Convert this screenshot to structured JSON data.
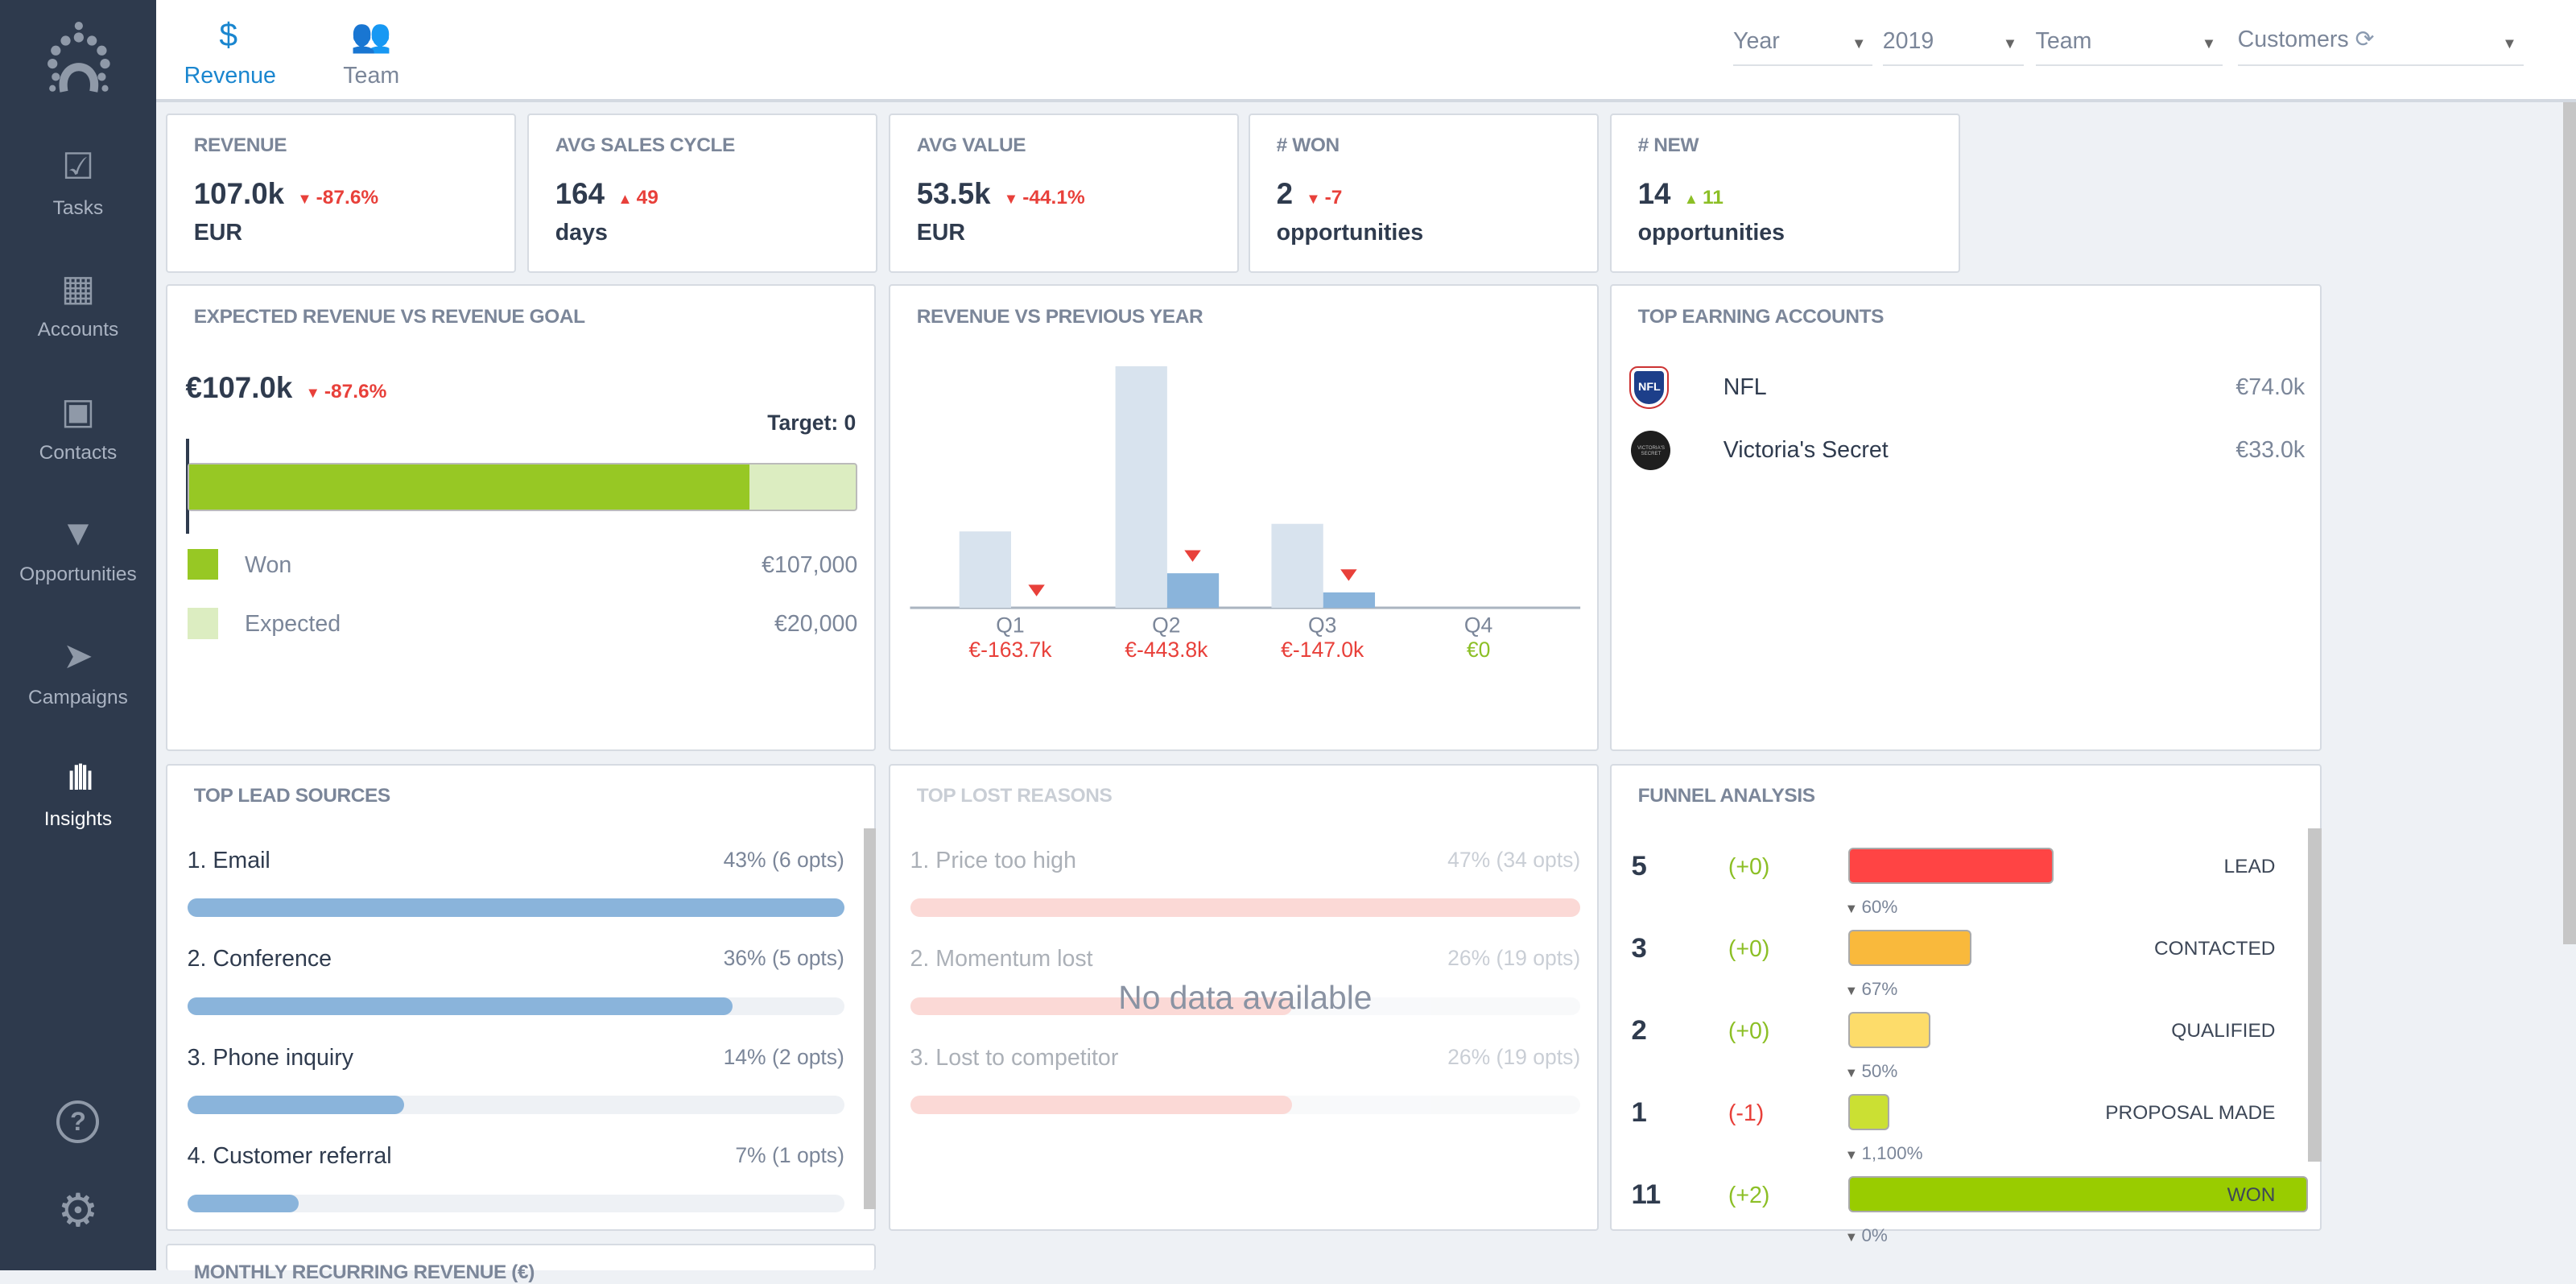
{
  "sidebar": {
    "items": [
      {
        "label": "Tasks",
        "icon": "check-square-icon"
      },
      {
        "label": "Accounts",
        "icon": "building-icon"
      },
      {
        "label": "Contacts",
        "icon": "contact-card-icon"
      },
      {
        "label": "Opportunities",
        "icon": "funnel-icon"
      },
      {
        "label": "Campaigns",
        "icon": "paper-plane-icon"
      },
      {
        "label": "Insights",
        "icon": "insights-icon",
        "active": true
      }
    ],
    "help_icon": "help-icon",
    "settings_icon": "gear-icon"
  },
  "tabs": [
    {
      "label": "Revenue",
      "icon": "dollar-icon",
      "active": true
    },
    {
      "label": "Team",
      "icon": "people-icon"
    }
  ],
  "filters": [
    {
      "value": "Year"
    },
    {
      "value": "2019"
    },
    {
      "value": "Team"
    },
    {
      "value": "Customers"
    }
  ],
  "kpis": [
    {
      "title": "REVENUE",
      "value": "107.0k",
      "delta": "-87.6%",
      "dir": "down",
      "unit": "EUR"
    },
    {
      "title": "AVG SALES CYCLE",
      "value": "164",
      "delta": "49",
      "dir": "up-bad",
      "unit": "days"
    },
    {
      "title": "AVG VALUE",
      "value": "53.5k",
      "delta": "-44.1%",
      "dir": "down",
      "unit": "EUR"
    },
    {
      "title": "# WON",
      "value": "2",
      "delta": "-7",
      "dir": "down",
      "unit": "opportunities"
    },
    {
      "title": "# NEW",
      "value": "14",
      "delta": "11",
      "dir": "up",
      "unit": "opportunities"
    }
  ],
  "goal": {
    "title": "EXPECTED REVENUE VS REVENUE GOAL",
    "value": "€107.0k",
    "delta": "-87.6%",
    "target": "Target: 0",
    "won_fraction": 0.84,
    "legend": [
      {
        "label": "Won",
        "value": "€107,000",
        "color": "#97c824"
      },
      {
        "label": "Expected",
        "value": "€20,000",
        "color": "#dcedc1"
      }
    ]
  },
  "chart_data": {
    "type": "bar",
    "title": "REVENUE VS PREVIOUS YEAR",
    "categories": [
      "Q1",
      "Q2",
      "Q3",
      "Q4"
    ],
    "series": [
      {
        "values": [
          163.7,
          517.8,
          180.0,
          0
        ],
        "color": "#d8e3ee"
      },
      {
        "values": [
          0,
          74.0,
          33.0,
          0
        ],
        "color": "#8ab4db"
      }
    ],
    "deltas": [
      "€-163.7k",
      "€-443.8k",
      "€-147.0k",
      "€0"
    ],
    "delta_dirs": [
      "down",
      "down",
      "down",
      "flat"
    ],
    "unit": "k EUR"
  },
  "accounts": {
    "title": "TOP EARNING ACCOUNTS",
    "items": [
      {
        "name": "NFL",
        "value": "€74.0k",
        "logo": "NFL"
      },
      {
        "name": "Victoria's Secret",
        "value": "€33.0k",
        "logo": "VICTORIA'S SECRET"
      }
    ]
  },
  "lead_sources": {
    "title": "TOP LEAD SOURCES",
    "items": [
      {
        "label": "1. Email",
        "stat": "43% (6 opts)",
        "fraction": 1.0
      },
      {
        "label": "2. Conference",
        "stat": "36% (5 opts)",
        "fraction": 0.83
      },
      {
        "label": "3. Phone inquiry",
        "stat": "14% (2 opts)",
        "fraction": 0.33
      },
      {
        "label": "4. Customer referral",
        "stat": "7% (1 opts)",
        "fraction": 0.17
      }
    ]
  },
  "lost_reasons": {
    "title": "TOP LOST REASONS",
    "empty": "No data available",
    "items": [
      {
        "label": "1. Price too high",
        "stat": "47% (34 opts)",
        "fraction": 1.0
      },
      {
        "label": "2. Momentum lost",
        "stat": "26% (19 opts)",
        "fraction": 0.57
      },
      {
        "label": "3. Lost to competitor",
        "stat": "26% (19 opts)",
        "fraction": 0.57
      }
    ]
  },
  "funnel": {
    "title": "FUNNEL ANALYSIS",
    "stages": [
      {
        "count": "5",
        "change": "(+0)",
        "label": "LEAD",
        "color": "#ff4444",
        "conv": "60%"
      },
      {
        "count": "3",
        "change": "(+0)",
        "label": "CONTACTED",
        "color": "#f9b93c",
        "conv": "67%"
      },
      {
        "count": "2",
        "change": "(+0)",
        "label": "QUALIFIED",
        "color": "#fddc6a",
        "conv": "50%"
      },
      {
        "count": "1",
        "change": "(-1)",
        "label": "PROPOSAL MADE",
        "color": "#cbe033",
        "conv": "1,100%"
      },
      {
        "count": "11",
        "change": "(+2)",
        "label": "WON",
        "color": "#99cc00",
        "conv": "0%"
      }
    ]
  },
  "mrr": {
    "title": "MONTHLY RECURRING REVENUE (€)"
  }
}
